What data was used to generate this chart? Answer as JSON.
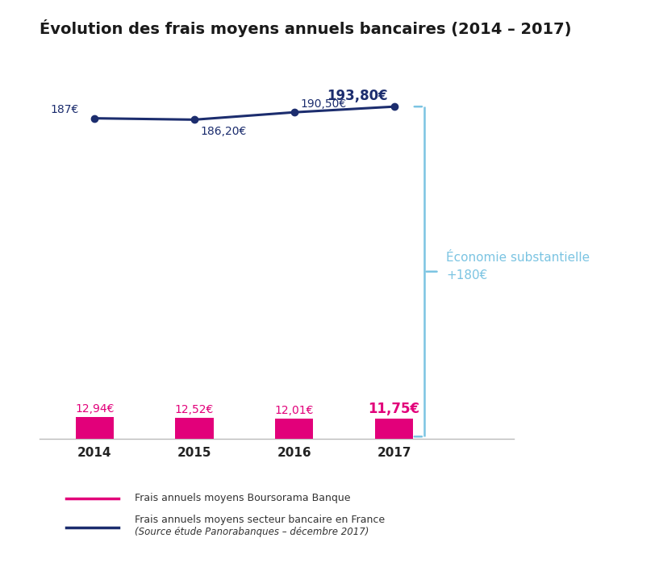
{
  "title": "Évolution des frais moyens annuels bancaires (2014 – 2017)",
  "years": [
    "2014",
    "2015",
    "2016",
    "2017"
  ],
  "bar_values": [
    12.94,
    12.52,
    12.01,
    11.75
  ],
  "bar_color": "#E2007A",
  "bar_labels": [
    "12,94€",
    "12,52€",
    "12,01€",
    "11,75€"
  ],
  "bar_label_bold": [
    false,
    false,
    false,
    true
  ],
  "line_values": [
    187.0,
    186.2,
    190.5,
    193.8
  ],
  "line_color": "#1C2D6E",
  "line_labels": [
    "187€",
    "186,20€",
    "190,50€",
    "193,80€"
  ],
  "line_label_bold": [
    false,
    false,
    false,
    true
  ],
  "bracket_color": "#7BC4E2",
  "annotation_line1": "Économie substantielle",
  "annotation_line2": "+180€",
  "annotation_color": "#7BC4E2",
  "legend_label1": "Frais annuels moyens Boursorama Banque",
  "legend_label2": "Frais annuels moyens secteur bancaire en France",
  "legend_label2_italic": "(Source étude Panorabanques – décembre 2017)",
  "background_color": "#FFFFFF",
  "title_fontsize": 14,
  "label_fontsize": 10,
  "label_fontsize_bold": 12,
  "tick_fontsize": 11,
  "legend_fontsize": 9,
  "bar_ylim": [
    0,
    200
  ],
  "line_ylim": [
    170,
    210
  ],
  "x_positions": [
    0,
    1,
    2,
    3
  ],
  "bar_width": 0.38,
  "xlim": [
    -0.55,
    4.2
  ]
}
